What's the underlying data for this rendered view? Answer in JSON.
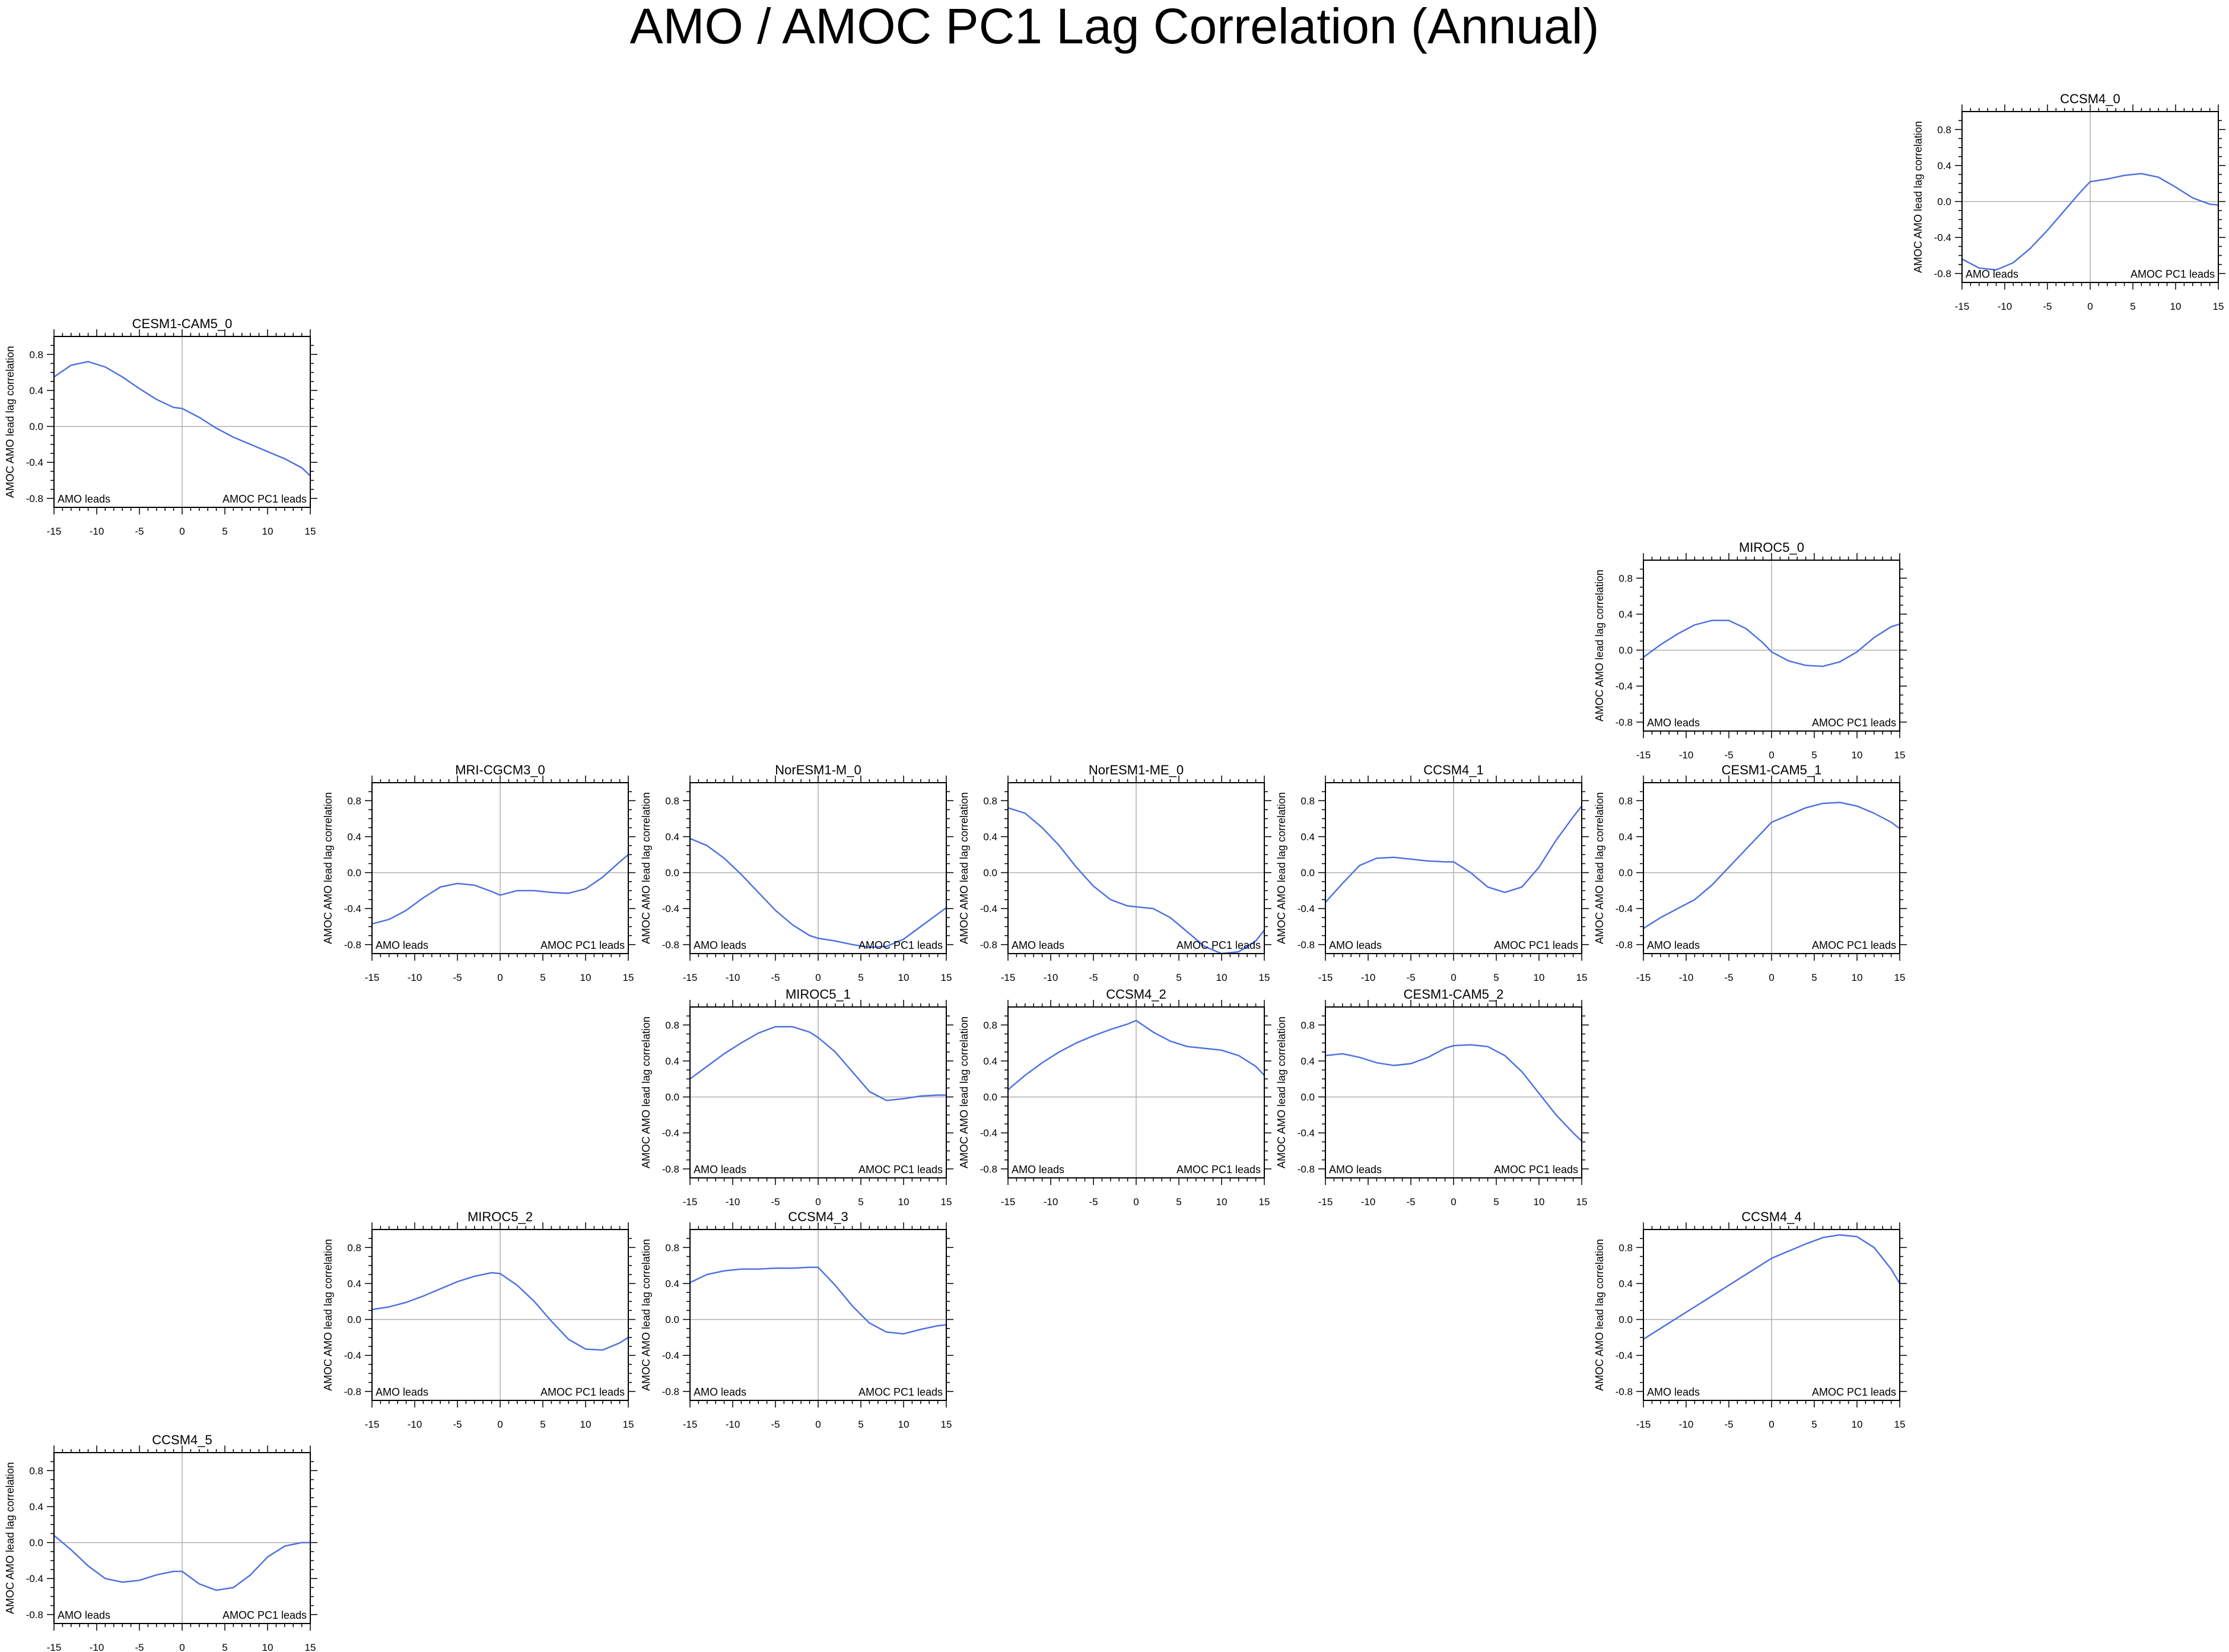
{
  "title": "AMO / AMOC PC1 Lag Correlation (Annual)",
  "style": {
    "line_color": "#4a6fe3",
    "zero_line_color": "#b0b0b0",
    "frame_color": "#000000"
  },
  "chart_data": [
    {
      "type": "line",
      "title": "CCSM4_0",
      "ylabel": "AMOC AMO lead lag correlation",
      "left_note": "AMO leads",
      "right_note": "AMOC PC1 leads",
      "xlim": [
        -15,
        15
      ],
      "ylim": [
        -0.9,
        1.0
      ],
      "xticks": [
        "-15",
        "-10",
        "-5",
        "0",
        "5",
        "10",
        "15"
      ],
      "yticks": [
        "-0.8",
        "-0.4",
        "0.0",
        "0.4",
        "0.8"
      ],
      "x": [
        -15,
        -13,
        -11,
        -9,
        -7,
        -5,
        -3,
        -1,
        0,
        2,
        4,
        6,
        8,
        10,
        12,
        14,
        15
      ],
      "y": [
        -0.64,
        -0.74,
        -0.76,
        -0.68,
        -0.52,
        -0.32,
        -0.1,
        0.12,
        0.22,
        0.25,
        0.29,
        0.31,
        0.27,
        0.16,
        0.04,
        -0.03,
        -0.04
      ]
    },
    {
      "type": "line",
      "title": "CESM1-CAM5_0",
      "ylabel": "AMOC AMO lead lag correlation",
      "left_note": "AMO leads",
      "right_note": "AMOC PC1 leads",
      "xlim": [
        -15,
        15
      ],
      "ylim": [
        -0.9,
        1.0
      ],
      "xticks": [
        "-15",
        "-10",
        "-5",
        "0",
        "5",
        "10",
        "15"
      ],
      "yticks": [
        "-0.8",
        "-0.4",
        "0.0",
        "0.4",
        "0.8"
      ],
      "x": [
        -15,
        -13,
        -11,
        -9,
        -7,
        -5,
        -3,
        -1,
        0,
        2,
        4,
        6,
        8,
        10,
        12,
        14,
        15
      ],
      "y": [
        0.55,
        0.68,
        0.72,
        0.66,
        0.55,
        0.42,
        0.3,
        0.21,
        0.2,
        0.1,
        -0.02,
        -0.12,
        -0.2,
        -0.28,
        -0.36,
        -0.46,
        -0.55
      ]
    },
    {
      "type": "line",
      "title": "MIROC5_0",
      "ylabel": "AMOC AMO lead lag correlation",
      "left_note": "AMO leads",
      "right_note": "AMOC PC1 leads",
      "xlim": [
        -15,
        15
      ],
      "ylim": [
        -0.9,
        1.0
      ],
      "xticks": [
        "-15",
        "-10",
        "-5",
        "0",
        "5",
        "10",
        "15"
      ],
      "yticks": [
        "-0.8",
        "-0.4",
        "0.0",
        "0.4",
        "0.8"
      ],
      "x": [
        -15,
        -13,
        -11,
        -9,
        -7,
        -5,
        -3,
        -1,
        0,
        2,
        4,
        6,
        8,
        10,
        12,
        14,
        15
      ],
      "y": [
        -0.08,
        0.06,
        0.18,
        0.28,
        0.33,
        0.33,
        0.24,
        0.08,
        -0.02,
        -0.12,
        -0.17,
        -0.18,
        -0.13,
        -0.02,
        0.14,
        0.26,
        0.29
      ]
    },
    {
      "type": "line",
      "title": "MRI-CGCM3_0",
      "ylabel": "AMOC AMO lead lag correlation",
      "left_note": "AMO leads",
      "right_note": "AMOC PC1 leads",
      "xlim": [
        -15,
        15
      ],
      "ylim": [
        -0.9,
        1.0
      ],
      "xticks": [
        "-15",
        "-10",
        "-5",
        "0",
        "5",
        "10",
        "15"
      ],
      "yticks": [
        "-0.8",
        "-0.4",
        "0.0",
        "0.4",
        "0.8"
      ],
      "x": [
        -15,
        -13,
        -11,
        -9,
        -7,
        -5,
        -3,
        -1,
        0,
        2,
        4,
        6,
        8,
        10,
        12,
        14,
        15
      ],
      "y": [
        -0.57,
        -0.52,
        -0.42,
        -0.28,
        -0.16,
        -0.12,
        -0.14,
        -0.21,
        -0.25,
        -0.2,
        -0.2,
        -0.22,
        -0.23,
        -0.18,
        -0.05,
        0.12,
        0.2
      ]
    },
    {
      "type": "line",
      "title": "NorESM1-M_0",
      "ylabel": "AMOC AMO lead lag correlation",
      "left_note": "AMO leads",
      "right_note": "AMOC PC1 leads",
      "xlim": [
        -15,
        15
      ],
      "ylim": [
        -0.9,
        1.0
      ],
      "xticks": [
        "-15",
        "-10",
        "-5",
        "0",
        "5",
        "10",
        "15"
      ],
      "yticks": [
        "-0.8",
        "-0.4",
        "0.0",
        "0.4",
        "0.8"
      ],
      "x": [
        -15,
        -13,
        -11,
        -9,
        -7,
        -5,
        -3,
        -1,
        0,
        2,
        4,
        6,
        8,
        10,
        12,
        14,
        15
      ],
      "y": [
        0.38,
        0.3,
        0.16,
        -0.02,
        -0.22,
        -0.42,
        -0.58,
        -0.7,
        -0.73,
        -0.76,
        -0.8,
        -0.83,
        -0.82,
        -0.74,
        -0.6,
        -0.46,
        -0.39
      ]
    },
    {
      "type": "line",
      "title": "NorESM1-ME_0",
      "ylabel": "AMOC AMO lead lag correlation",
      "left_note": "AMO leads",
      "right_note": "AMOC PC1 leads",
      "xlim": [
        -15,
        15
      ],
      "ylim": [
        -0.9,
        1.0
      ],
      "xticks": [
        "-15",
        "-10",
        "-5",
        "0",
        "5",
        "10",
        "15"
      ],
      "yticks": [
        "-0.8",
        "-0.4",
        "0.0",
        "0.4",
        "0.8"
      ],
      "x": [
        -15,
        -13,
        -11,
        -9,
        -7,
        -5,
        -3,
        -1,
        0,
        2,
        4,
        6,
        8,
        10,
        12,
        14,
        15
      ],
      "y": [
        0.72,
        0.66,
        0.5,
        0.3,
        0.06,
        -0.15,
        -0.3,
        -0.37,
        -0.38,
        -0.4,
        -0.5,
        -0.66,
        -0.82,
        -0.9,
        -0.88,
        -0.76,
        -0.64
      ]
    },
    {
      "type": "line",
      "title": "CCSM4_1",
      "ylabel": "AMOC AMO lead lag correlation",
      "left_note": "AMO leads",
      "right_note": "AMOC PC1 leads",
      "xlim": [
        -15,
        15
      ],
      "ylim": [
        -0.9,
        1.0
      ],
      "xticks": [
        "-15",
        "-10",
        "-5",
        "0",
        "5",
        "10",
        "15"
      ],
      "yticks": [
        "-0.8",
        "-0.4",
        "0.0",
        "0.4",
        "0.8"
      ],
      "x": [
        -15,
        -13,
        -11,
        -9,
        -7,
        -5,
        -3,
        -1,
        0,
        2,
        4,
        6,
        8,
        10,
        12,
        14,
        15
      ],
      "y": [
        -0.33,
        -0.12,
        0.08,
        0.16,
        0.17,
        0.15,
        0.13,
        0.12,
        0.12,
        0.0,
        -0.16,
        -0.22,
        -0.16,
        0.06,
        0.36,
        0.62,
        0.74
      ]
    },
    {
      "type": "line",
      "title": "CESM1-CAM5_1",
      "ylabel": "AMOC AMO lead lag correlation",
      "left_note": "AMO leads",
      "right_note": "AMOC PC1 leads",
      "xlim": [
        -15,
        15
      ],
      "ylim": [
        -0.9,
        1.0
      ],
      "xticks": [
        "-15",
        "-10",
        "-5",
        "0",
        "5",
        "10",
        "15"
      ],
      "yticks": [
        "-0.8",
        "-0.4",
        "0.0",
        "0.4",
        "0.8"
      ],
      "x": [
        -15,
        -13,
        -11,
        -9,
        -7,
        -5,
        -3,
        -1,
        0,
        2,
        4,
        6,
        8,
        10,
        12,
        14,
        15
      ],
      "y": [
        -0.62,
        -0.5,
        -0.4,
        -0.3,
        -0.14,
        0.06,
        0.26,
        0.46,
        0.56,
        0.64,
        0.72,
        0.77,
        0.78,
        0.74,
        0.66,
        0.56,
        0.49
      ]
    },
    {
      "type": "line",
      "title": "MIROC5_1",
      "ylabel": "AMOC AMO lead lag correlation",
      "left_note": "AMO leads",
      "right_note": "AMOC PC1 leads",
      "xlim": [
        -15,
        15
      ],
      "ylim": [
        -0.9,
        1.0
      ],
      "xticks": [
        "-15",
        "-10",
        "-5",
        "0",
        "5",
        "10",
        "15"
      ],
      "yticks": [
        "-0.8",
        "-0.4",
        "0.0",
        "0.4",
        "0.8"
      ],
      "x": [
        -15,
        -13,
        -11,
        -9,
        -7,
        -5,
        -3,
        -1,
        0,
        2,
        4,
        6,
        8,
        10,
        12,
        14,
        15
      ],
      "y": [
        0.2,
        0.34,
        0.48,
        0.6,
        0.71,
        0.78,
        0.78,
        0.72,
        0.66,
        0.5,
        0.28,
        0.06,
        -0.04,
        -0.02,
        0.01,
        0.02,
        0.02
      ]
    },
    {
      "type": "line",
      "title": "CCSM4_2",
      "ylabel": "AMOC AMO lead lag correlation",
      "left_note": "AMO leads",
      "right_note": "AMOC PC1 leads",
      "xlim": [
        -15,
        15
      ],
      "ylim": [
        -0.9,
        1.0
      ],
      "xticks": [
        "-15",
        "-10",
        "-5",
        "0",
        "5",
        "10",
        "15"
      ],
      "yticks": [
        "-0.8",
        "-0.4",
        "0.0",
        "0.4",
        "0.8"
      ],
      "x": [
        -15,
        -13,
        -11,
        -9,
        -7,
        -5,
        -3,
        -1,
        0,
        2,
        4,
        6,
        8,
        10,
        12,
        14,
        15
      ],
      "y": [
        0.08,
        0.24,
        0.38,
        0.5,
        0.6,
        0.68,
        0.75,
        0.81,
        0.85,
        0.72,
        0.62,
        0.56,
        0.54,
        0.52,
        0.46,
        0.34,
        0.24
      ]
    },
    {
      "type": "line",
      "title": "CESM1-CAM5_2",
      "ylabel": "AMOC AMO lead lag correlation",
      "left_note": "AMO leads",
      "right_note": "AMOC PC1 leads",
      "xlim": [
        -15,
        15
      ],
      "ylim": [
        -0.9,
        1.0
      ],
      "xticks": [
        "-15",
        "-10",
        "-5",
        "0",
        "5",
        "10",
        "15"
      ],
      "yticks": [
        "-0.8",
        "-0.4",
        "0.0",
        "0.4",
        "0.8"
      ],
      "x": [
        -15,
        -13,
        -11,
        -9,
        -7,
        -5,
        -3,
        -1,
        0,
        2,
        4,
        6,
        8,
        10,
        12,
        14,
        15
      ],
      "y": [
        0.46,
        0.48,
        0.44,
        0.38,
        0.35,
        0.37,
        0.44,
        0.54,
        0.57,
        0.58,
        0.56,
        0.46,
        0.28,
        0.04,
        -0.2,
        -0.4,
        -0.49
      ]
    },
    {
      "type": "line",
      "title": "MIROC5_2",
      "ylabel": "AMOC AMO lead lag correlation",
      "left_note": "AMO leads",
      "right_note": "AMOC PC1 leads",
      "xlim": [
        -15,
        15
      ],
      "ylim": [
        -0.9,
        1.0
      ],
      "xticks": [
        "-15",
        "-10",
        "-5",
        "0",
        "5",
        "10",
        "15"
      ],
      "yticks": [
        "-0.8",
        "-0.4",
        "0.0",
        "0.4",
        "0.8"
      ],
      "x": [
        -15,
        -13,
        -11,
        -9,
        -7,
        -5,
        -3,
        -1,
        0,
        2,
        4,
        6,
        8,
        10,
        12,
        14,
        15
      ],
      "y": [
        0.11,
        0.14,
        0.19,
        0.26,
        0.34,
        0.42,
        0.48,
        0.52,
        0.51,
        0.38,
        0.2,
        -0.02,
        -0.22,
        -0.33,
        -0.34,
        -0.26,
        -0.2
      ]
    },
    {
      "type": "line",
      "title": "CCSM4_3",
      "ylabel": "AMOC AMO lead lag correlation",
      "left_note": "AMO leads",
      "right_note": "AMOC PC1 leads",
      "xlim": [
        -15,
        15
      ],
      "ylim": [
        -0.9,
        1.0
      ],
      "xticks": [
        "-15",
        "-10",
        "-5",
        "0",
        "5",
        "10",
        "15"
      ],
      "yticks": [
        "-0.8",
        "-0.4",
        "0.0",
        "0.4",
        "0.8"
      ],
      "x": [
        -15,
        -13,
        -11,
        -9,
        -7,
        -5,
        -3,
        -1,
        0,
        2,
        4,
        6,
        8,
        10,
        12,
        14,
        15
      ],
      "y": [
        0.41,
        0.5,
        0.54,
        0.56,
        0.56,
        0.57,
        0.57,
        0.58,
        0.58,
        0.38,
        0.15,
        -0.04,
        -0.14,
        -0.16,
        -0.11,
        -0.07,
        -0.06
      ]
    },
    {
      "type": "line",
      "title": "CCSM4_4",
      "ylabel": "AMOC AMO lead lag correlation",
      "left_note": "AMO leads",
      "right_note": "AMOC PC1 leads",
      "xlim": [
        -15,
        15
      ],
      "ylim": [
        -0.9,
        1.0
      ],
      "xticks": [
        "-15",
        "-10",
        "-5",
        "0",
        "5",
        "10",
        "15"
      ],
      "yticks": [
        "-0.8",
        "-0.4",
        "0.0",
        "0.4",
        "0.8"
      ],
      "x": [
        -15,
        -13,
        -11,
        -9,
        -7,
        -5,
        -3,
        -1,
        0,
        2,
        4,
        6,
        8,
        10,
        12,
        14,
        15
      ],
      "y": [
        -0.22,
        -0.1,
        0.02,
        0.14,
        0.26,
        0.38,
        0.5,
        0.62,
        0.68,
        0.76,
        0.84,
        0.91,
        0.94,
        0.92,
        0.8,
        0.56,
        0.4
      ]
    },
    {
      "type": "line",
      "title": "CCSM4_5",
      "ylabel": "AMOC AMO lead lag correlation",
      "left_note": "AMO leads",
      "right_note": "AMOC PC1 leads",
      "xlim": [
        -15,
        15
      ],
      "ylim": [
        -0.9,
        1.0
      ],
      "xticks": [
        "-15",
        "-10",
        "-5",
        "0",
        "5",
        "10",
        "15"
      ],
      "yticks": [
        "-0.8",
        "-0.4",
        "0.0",
        "0.4",
        "0.8"
      ],
      "x": [
        -15,
        -13,
        -11,
        -9,
        -7,
        -5,
        -3,
        -1,
        0,
        2,
        4,
        6,
        8,
        10,
        12,
        14,
        15
      ],
      "y": [
        0.08,
        -0.08,
        -0.26,
        -0.4,
        -0.44,
        -0.42,
        -0.36,
        -0.32,
        -0.32,
        -0.46,
        -0.53,
        -0.5,
        -0.36,
        -0.16,
        -0.04,
        0.0,
        0.0
      ]
    }
  ]
}
